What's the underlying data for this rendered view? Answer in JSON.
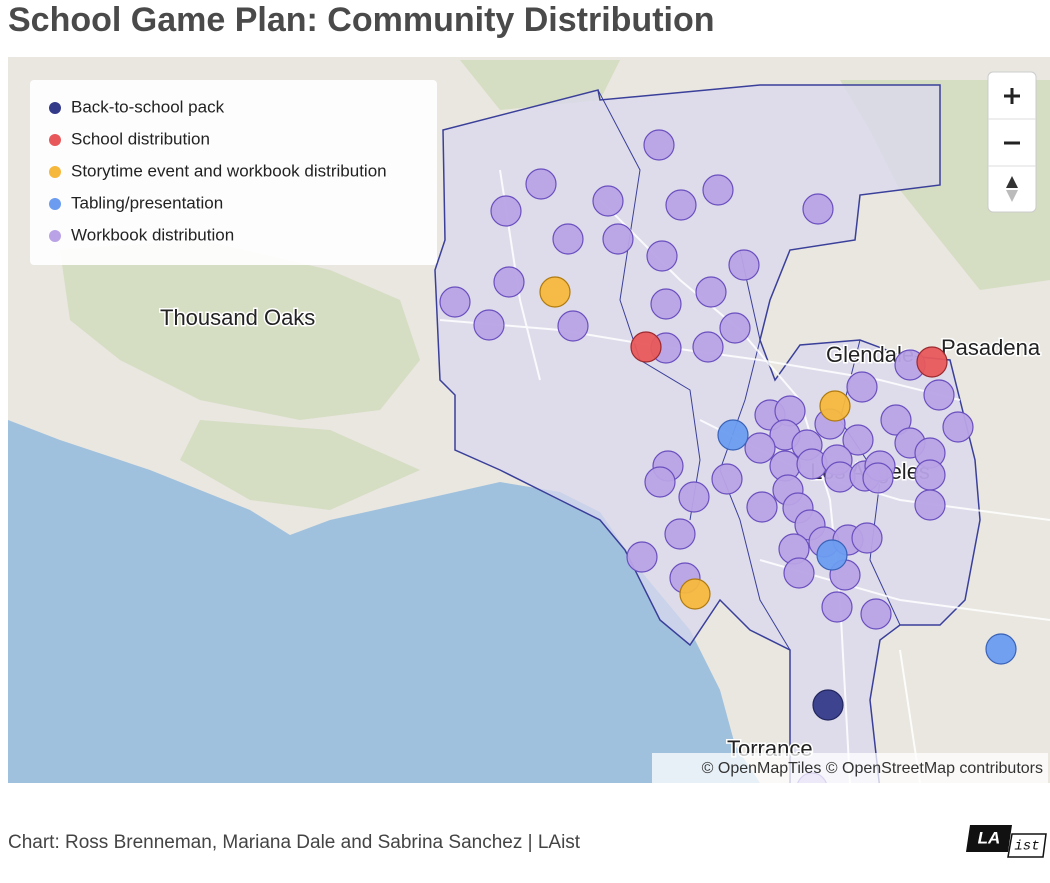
{
  "header": {
    "title": "School Game Plan: Community Distribution"
  },
  "legend": {
    "items": [
      {
        "label": "Back-to-school pack",
        "color": "#343a8a"
      },
      {
        "label": "School distribution",
        "color": "#e8585a"
      },
      {
        "label": "Storytime event and workbook distribution",
        "color": "#f5b83d"
      },
      {
        "label": "Tabling/presentation",
        "color": "#6b9cf0"
      },
      {
        "label": "Workbook distribution",
        "color": "#b9a3e6"
      }
    ]
  },
  "map": {
    "labels": [
      "Thousand Oaks",
      "Glendale",
      "Pasadena",
      "Los Angeles",
      "Torrance"
    ],
    "attribution": "© OpenMapTiles © OpenStreetMap contributors"
  },
  "footer": {
    "credit": "Chart: Ross Brenneman, Mariana Dale and Sabrina Sanchez | LAist",
    "logo": [
      "LA",
      "ist"
    ]
  }
}
